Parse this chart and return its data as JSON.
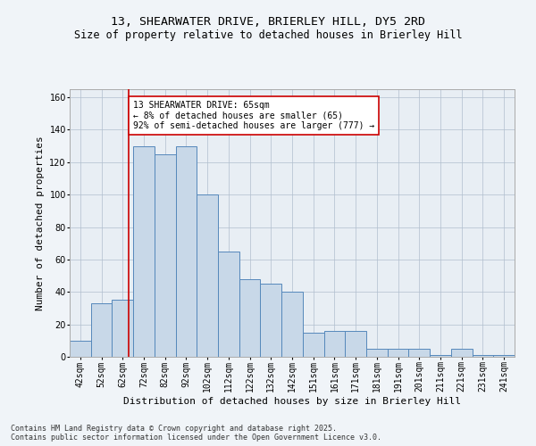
{
  "title_line1": "13, SHEARWATER DRIVE, BRIERLEY HILL, DY5 2RD",
  "title_line2": "Size of property relative to detached houses in Brierley Hill",
  "xlabel": "Distribution of detached houses by size in Brierley Hill",
  "ylabel": "Number of detached properties",
  "annotation_line1": "13 SHEARWATER DRIVE: 65sqm",
  "annotation_line2": "← 8% of detached houses are smaller (65)",
  "annotation_line3": "92% of semi-detached houses are larger (777) →",
  "footer1": "Contains HM Land Registry data © Crown copyright and database right 2025.",
  "footer2": "Contains public sector information licensed under the Open Government Licence v3.0.",
  "categories": [
    "42sqm",
    "52sqm",
    "62sqm",
    "72sqm",
    "82sqm",
    "92sqm",
    "102sqm",
    "112sqm",
    "122sqm",
    "132sqm",
    "142sqm",
    "151sqm",
    "161sqm",
    "171sqm",
    "181sqm",
    "191sqm",
    "201sqm",
    "211sqm",
    "221sqm",
    "231sqm",
    "241sqm"
  ],
  "values": [
    10,
    33,
    35,
    130,
    125,
    130,
    100,
    65,
    48,
    45,
    40,
    15,
    16,
    16,
    5,
    5,
    5,
    1,
    5,
    1,
    1
  ],
  "bar_color": "#c8d8e8",
  "bar_edge_color": "#5588bb",
  "bar_width": 1.0,
  "vline_color": "#cc0000",
  "ylim": [
    0,
    165
  ],
  "yticks": [
    0,
    20,
    40,
    60,
    80,
    100,
    120,
    140,
    160
  ],
  "background_color": "#e8eef4",
  "fig_background_color": "#f0f4f8",
  "annotation_box_color": "#cc0000",
  "title_fontsize": 9.5,
  "subtitle_fontsize": 8.5,
  "axis_label_fontsize": 8,
  "tick_fontsize": 7,
  "annotation_fontsize": 7,
  "footer_fontsize": 6
}
